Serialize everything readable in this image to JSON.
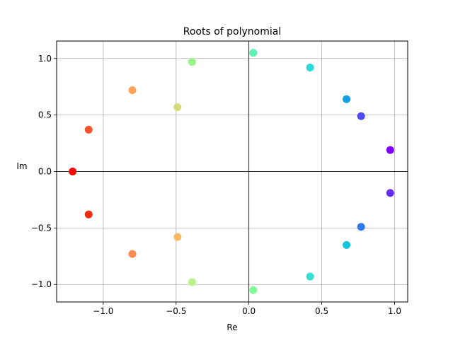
{
  "chart_data": {
    "type": "scatter",
    "title": "Roots of polynomial",
    "xlabel": "Re",
    "ylabel": "Im",
    "xlim": [
      -1.32,
      1.09
    ],
    "ylim": [
      -1.155,
      1.155
    ],
    "grid": true,
    "reference_lines": {
      "x": 0,
      "y": 0
    },
    "x_ticks": [
      {
        "value": -1.0,
        "label": "−1.0"
      },
      {
        "value": -0.5,
        "label": "−0.5"
      },
      {
        "value": 0.0,
        "label": "0.0"
      },
      {
        "value": 0.5,
        "label": "0.5"
      },
      {
        "value": 1.0,
        "label": "1.0"
      }
    ],
    "y_ticks": [
      {
        "value": -1.0,
        "label": "−1.0"
      },
      {
        "value": -0.5,
        "label": "−0.5"
      },
      {
        "value": 0.0,
        "label": "0.0"
      },
      {
        "value": 0.5,
        "label": "0.5"
      },
      {
        "value": 1.0,
        "label": "1.0"
      }
    ],
    "points": [
      {
        "x": 0.97,
        "y": 0.19,
        "color": "#7f00ff"
      },
      {
        "x": 0.97,
        "y": -0.19,
        "color": "#6a2cfa"
      },
      {
        "x": 0.77,
        "y": 0.49,
        "color": "#4e4cf2"
      },
      {
        "x": 0.77,
        "y": -0.49,
        "color": "#2e7af0"
      },
      {
        "x": 0.67,
        "y": 0.64,
        "color": "#149fe4"
      },
      {
        "x": 0.67,
        "y": -0.65,
        "color": "#13c6dd"
      },
      {
        "x": 0.42,
        "y": 0.92,
        "color": "#2adddd"
      },
      {
        "x": 0.42,
        "y": -0.93,
        "color": "#36e0d0"
      },
      {
        "x": 0.03,
        "y": 1.05,
        "color": "#5cf2b0"
      },
      {
        "x": 0.03,
        "y": -1.05,
        "color": "#80fa9a"
      },
      {
        "x": -0.39,
        "y": 0.97,
        "color": "#9cf58a"
      },
      {
        "x": -0.39,
        "y": -0.98,
        "color": "#b8f28a"
      },
      {
        "x": -0.49,
        "y": 0.57,
        "color": "#d2dc7c"
      },
      {
        "x": -0.49,
        "y": -0.58,
        "color": "#fab864"
      },
      {
        "x": -0.8,
        "y": 0.72,
        "color": "#fca25a"
      },
      {
        "x": -0.8,
        "y": -0.73,
        "color": "#f88b52"
      },
      {
        "x": -1.1,
        "y": 0.37,
        "color": "#f65230"
      },
      {
        "x": -1.1,
        "y": -0.38,
        "color": "#ee2c14"
      },
      {
        "x": -1.21,
        "y": 0.0,
        "color": "#ff0000"
      }
    ]
  }
}
